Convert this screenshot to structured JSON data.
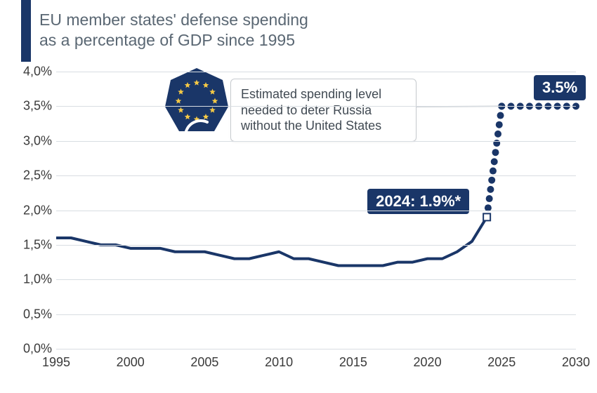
{
  "subtitle": "EU member states' defense spending\nas a percentage of GDP since 1995",
  "callout_text": "Estimated spending level\nneeded to deter Russia\nwithout the United States",
  "badge_2024": "2024: 1.9%*",
  "badge_target": "3.5%",
  "chart": {
    "type": "line",
    "background_color": "#ffffff",
    "grid_color": "#d8dde2",
    "axis_label_color": "#3a3a3a",
    "line_color": "#1a3668",
    "line_width": 4,
    "dot_color": "#1a3668",
    "dot_radius": 5,
    "x_start": 1995,
    "x_end": 2030,
    "x_ticks": [
      1995,
      2000,
      2005,
      2010,
      2015,
      2020,
      2025,
      2030
    ],
    "y_min": 0.0,
    "y_max": 4.0,
    "y_ticks": [
      0.0,
      0.5,
      1.0,
      1.5,
      2.0,
      2.5,
      3.0,
      3.5,
      4.0
    ],
    "y_tick_labels": [
      "0,0%",
      "0,5%",
      "1,0%",
      "1,5%",
      "2,0%",
      "2,5%",
      "3,0%",
      "3,5%",
      "4,0%"
    ],
    "solid_series": [
      {
        "x": 1995,
        "y": 1.6
      },
      {
        "x": 1996,
        "y": 1.6
      },
      {
        "x": 1997,
        "y": 1.55
      },
      {
        "x": 1998,
        "y": 1.5
      },
      {
        "x": 1999,
        "y": 1.5
      },
      {
        "x": 2000,
        "y": 1.45
      },
      {
        "x": 2001,
        "y": 1.45
      },
      {
        "x": 2002,
        "y": 1.45
      },
      {
        "x": 2003,
        "y": 1.4
      },
      {
        "x": 2004,
        "y": 1.4
      },
      {
        "x": 2005,
        "y": 1.4
      },
      {
        "x": 2006,
        "y": 1.35
      },
      {
        "x": 2007,
        "y": 1.3
      },
      {
        "x": 2008,
        "y": 1.3
      },
      {
        "x": 2009,
        "y": 1.35
      },
      {
        "x": 2010,
        "y": 1.4
      },
      {
        "x": 2011,
        "y": 1.3
      },
      {
        "x": 2012,
        "y": 1.3
      },
      {
        "x": 2013,
        "y": 1.25
      },
      {
        "x": 2014,
        "y": 1.2
      },
      {
        "x": 2015,
        "y": 1.2
      },
      {
        "x": 2016,
        "y": 1.2
      },
      {
        "x": 2017,
        "y": 1.2
      },
      {
        "x": 2018,
        "y": 1.25
      },
      {
        "x": 2019,
        "y": 1.25
      },
      {
        "x": 2020,
        "y": 1.3
      },
      {
        "x": 2021,
        "y": 1.3
      },
      {
        "x": 2022,
        "y": 1.4
      },
      {
        "x": 2023,
        "y": 1.55
      },
      {
        "x": 2024,
        "y": 1.9
      }
    ],
    "dotted_series": [
      {
        "x": 2024,
        "y": 1.9
      },
      {
        "x": 2025,
        "y": 3.5
      },
      {
        "x": 2030,
        "y": 3.5
      }
    ]
  },
  "eu_badge": {
    "bg_color": "#1a3668",
    "star_color": "#f6c945",
    "euro_color": "#ffffff"
  }
}
